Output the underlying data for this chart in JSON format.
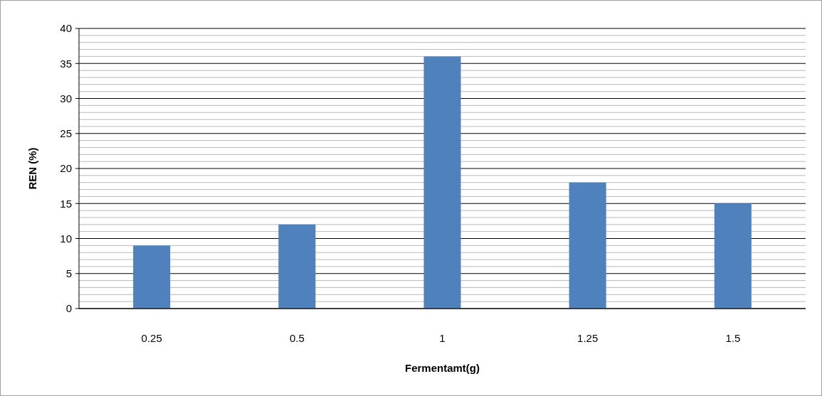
{
  "chart_data": {
    "type": "bar",
    "xlabel": "Fermentamt(g)",
    "ylabel": "REN (%)",
    "categories": [
      "0.25",
      "0.5",
      "1",
      "1.25",
      "1.5"
    ],
    "values": [
      9,
      12,
      36,
      18,
      15
    ],
    "color": "#4f81bd",
    "ylim": [
      0,
      40
    ],
    "yticks": [
      0,
      {
        "value": 1,
        "label": null
      },
      {
        "value": 2,
        "label": null
      },
      {
        "value": 3,
        "label": null
      },
      {
        "value": 4,
        "label": null
      },
      5,
      {
        "value": 6,
        "label": null
      },
      {
        "value": 7,
        "label": null
      },
      {
        "value": 8,
        "label": null
      },
      {
        "value": 9,
        "label": null
      },
      10,
      {
        "value": 11,
        "label": null
      },
      {
        "value": 12,
        "label": null
      },
      {
        "value": 13,
        "label": null
      },
      {
        "value": 14,
        "label": null
      },
      15,
      {
        "value": 16,
        "label": null
      },
      {
        "value": 17,
        "label": null
      },
      {
        "value": 18,
        "label": null
      },
      {
        "value": 19,
        "label": null
      },
      20,
      {
        "value": 21,
        "label": null
      },
      {
        "value": 22,
        "label": null
      },
      {
        "value": 23,
        "label": null
      },
      {
        "value": 24,
        "label": null
      },
      25,
      {
        "value": 26,
        "label": null
      },
      {
        "value": 27,
        "label": null
      },
      {
        "value": 28,
        "label": null
      },
      {
        "value": 29,
        "label": null
      },
      30,
      {
        "value": 31,
        "label": null
      },
      {
        "value": 32,
        "label": null
      },
      {
        "value": 33,
        "label": null
      },
      {
        "value": 34,
        "label": null
      },
      35,
      {
        "value": 36,
        "label": null
      },
      {
        "value": 37,
        "label": null
      },
      {
        "value": 38,
        "label": null
      },
      {
        "value": 39,
        "label": null
      },
      40
    ],
    "grid": true
  }
}
